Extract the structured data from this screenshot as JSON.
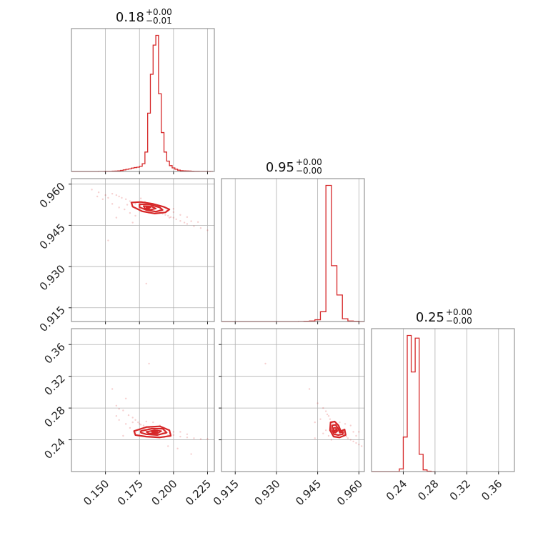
{
  "chart_data": {
    "type": "corner",
    "color": "#d62728",
    "grid": true,
    "params": [
      {
        "id": "p0",
        "range": [
          0.125,
          0.23
        ],
        "ticks": [
          "0.150",
          "0.175",
          "0.200",
          "0.225"
        ],
        "tick_values": [
          0.15,
          0.175,
          0.2,
          0.225
        ]
      },
      {
        "id": "p1",
        "range": [
          0.91,
          0.962
        ],
        "ticks": [
          "0.915",
          "0.930",
          "0.945",
          "0.960"
        ],
        "tick_values": [
          0.915,
          0.93,
          0.945,
          0.96
        ]
      },
      {
        "id": "p2",
        "range": [
          0.2,
          0.38
        ],
        "ticks": [
          "0.24",
          "0.28",
          "0.32",
          "0.36"
        ],
        "tick_values": [
          0.24,
          0.28,
          0.32,
          0.36
        ]
      }
    ],
    "titles": [
      {
        "value": "0.18",
        "plus": "+0.00",
        "minus": "−0.01"
      },
      {
        "value": "0.95",
        "plus": "+0.00",
        "minus": "−0.00"
      },
      {
        "value": "0.25",
        "plus": "+0.00",
        "minus": "−0.00"
      }
    ],
    "histograms": [
      {
        "param": 0,
        "bin_edges": [
          0.125,
          0.127,
          0.129,
          0.131,
          0.133,
          0.135,
          0.137,
          0.139,
          0.141,
          0.143,
          0.145,
          0.147,
          0.149,
          0.151,
          0.153,
          0.155,
          0.157,
          0.159,
          0.161,
          0.163,
          0.165,
          0.167,
          0.169,
          0.171,
          0.173,
          0.175,
          0.177,
          0.179,
          0.181,
          0.183,
          0.185,
          0.187,
          0.189,
          0.191,
          0.193,
          0.195,
          0.197,
          0.199,
          0.201,
          0.203,
          0.205,
          0.207,
          0.209,
          0.211,
          0.213,
          0.215,
          0.217,
          0.219,
          0.221,
          0.223,
          0.225,
          0.227,
          0.229
        ],
        "counts": [
          0,
          0,
          0,
          0,
          0,
          0,
          0,
          0,
          0,
          0,
          1,
          1,
          2,
          2,
          3,
          5,
          6,
          10,
          16,
          24,
          33,
          40,
          52,
          60,
          66,
          80,
          120,
          300,
          900,
          1500,
          1950,
          2100,
          1200,
          600,
          300,
          160,
          90,
          55,
          35,
          20,
          12,
          10,
          8,
          6,
          4,
          3,
          2,
          1,
          1,
          1,
          0,
          1
        ]
      },
      {
        "param": 1,
        "bin_edges": [
          0.91,
          0.912,
          0.914,
          0.916,
          0.918,
          0.92,
          0.922,
          0.924,
          0.926,
          0.928,
          0.93,
          0.932,
          0.934,
          0.936,
          0.938,
          0.94,
          0.942,
          0.944,
          0.946,
          0.948,
          0.95,
          0.952,
          0.954,
          0.956,
          0.958,
          0.96,
          0.962
        ],
        "counts": [
          0,
          0,
          0,
          0,
          0,
          0,
          0,
          0,
          0,
          0,
          0,
          0,
          0,
          0,
          1,
          3,
          8,
          25,
          140,
          1950,
          800,
          380,
          40,
          8,
          3,
          0
        ]
      },
      {
        "param": 2,
        "bin_edges": [
          0.2,
          0.205,
          0.21,
          0.215,
          0.22,
          0.225,
          0.23,
          0.235,
          0.24,
          0.245,
          0.25,
          0.255,
          0.26,
          0.265,
          0.27,
          0.275,
          0.28
        ],
        "counts": [
          0,
          0,
          0,
          0,
          0,
          0,
          0,
          40,
          520,
          2050,
          1500,
          2010,
          260,
          25,
          5,
          0
        ]
      }
    ],
    "scatter_panels": [
      {
        "x_param": 0,
        "y_param": 1,
        "points": [
          [
            0.14,
            0.958
          ],
          [
            0.145,
            0.957
          ],
          [
            0.15,
            0.956
          ],
          [
            0.152,
            0.955
          ],
          [
            0.155,
            0.9565
          ],
          [
            0.158,
            0.956
          ],
          [
            0.16,
            0.9555
          ],
          [
            0.162,
            0.955
          ],
          [
            0.165,
            0.9545
          ],
          [
            0.168,
            0.9538
          ],
          [
            0.17,
            0.9532
          ],
          [
            0.172,
            0.9528
          ],
          [
            0.174,
            0.9534
          ],
          [
            0.176,
            0.9522
          ],
          [
            0.178,
            0.952
          ],
          [
            0.18,
            0.9512
          ],
          [
            0.182,
            0.9508
          ],
          [
            0.184,
            0.9505
          ],
          [
            0.186,
            0.95
          ],
          [
            0.188,
            0.9498
          ],
          [
            0.19,
            0.9495
          ],
          [
            0.192,
            0.9492
          ],
          [
            0.194,
            0.9488
          ],
          [
            0.196,
            0.9485
          ],
          [
            0.198,
            0.948
          ],
          [
            0.2,
            0.9478
          ],
          [
            0.202,
            0.9472
          ],
          [
            0.205,
            0.9466
          ],
          [
            0.208,
            0.946
          ],
          [
            0.21,
            0.9455
          ],
          [
            0.215,
            0.9447
          ],
          [
            0.22,
            0.944
          ],
          [
            0.225,
            0.9432
          ],
          [
            0.168,
            0.9495
          ],
          [
            0.172,
            0.9485
          ],
          [
            0.164,
            0.9508
          ],
          [
            0.16,
            0.9515
          ],
          [
            0.166,
            0.9525
          ],
          [
            0.179,
            0.9536
          ],
          [
            0.185,
            0.9524
          ],
          [
            0.19,
            0.9508
          ],
          [
            0.2,
            0.9498
          ],
          [
            0.195,
            0.9503
          ],
          [
            0.175,
            0.951
          ],
          [
            0.182,
            0.9495
          ],
          [
            0.155,
            0.9528
          ],
          [
            0.188,
            0.9517
          ],
          [
            0.205,
            0.9488
          ],
          [
            0.21,
            0.948
          ],
          [
            0.2,
            0.951
          ],
          [
            0.18,
            0.9238
          ],
          [
            0.152,
            0.9395
          ],
          [
            0.17,
            0.946
          ],
          [
            0.148,
            0.9545
          ],
          [
            0.144,
            0.9555
          ],
          [
            0.158,
            0.9478
          ],
          [
            0.197,
            0.9478
          ],
          [
            0.213,
            0.9465
          ],
          [
            0.218,
            0.9462
          ],
          [
            0.176,
            0.9548
          ]
        ],
        "contours": [
          [
            [
              0.169,
              0.9533
            ],
            [
              0.176,
              0.9535
            ],
            [
              0.185,
              0.9528
            ],
            [
              0.193,
              0.9517
            ],
            [
              0.197,
              0.9508
            ],
            [
              0.194,
              0.9497
            ],
            [
              0.186,
              0.9493
            ],
            [
              0.177,
              0.9501
            ],
            [
              0.17,
              0.9518
            ]
          ],
          [
            [
              0.175,
              0.9527
            ],
            [
              0.183,
              0.9525
            ],
            [
              0.19,
              0.9515
            ],
            [
              0.192,
              0.9506
            ],
            [
              0.187,
              0.95
            ],
            [
              0.18,
              0.9506
            ],
            [
              0.175,
              0.9516
            ]
          ],
          [
            [
              0.178,
              0.952
            ],
            [
              0.184,
              0.9518
            ],
            [
              0.187,
              0.9511
            ],
            [
              0.183,
              0.9507
            ],
            [
              0.179,
              0.9512
            ]
          ],
          [
            [
              0.18,
              0.9517
            ],
            [
              0.183,
              0.9515
            ],
            [
              0.182,
              0.9512
            ],
            [
              0.18,
              0.9514
            ]
          ]
        ]
      },
      {
        "x_param": 0,
        "y_param": 2,
        "points": [
          [
            0.155,
            0.304
          ],
          [
            0.158,
            0.283
          ],
          [
            0.16,
            0.279
          ],
          [
            0.163,
            0.277
          ],
          [
            0.165,
            0.292
          ],
          [
            0.167,
            0.271
          ],
          [
            0.17,
            0.268
          ],
          [
            0.172,
            0.265
          ],
          [
            0.174,
            0.262
          ],
          [
            0.176,
            0.259
          ],
          [
            0.178,
            0.258
          ],
          [
            0.18,
            0.256
          ],
          [
            0.182,
            0.255
          ],
          [
            0.184,
            0.254
          ],
          [
            0.186,
            0.253
          ],
          [
            0.188,
            0.252
          ],
          [
            0.19,
            0.25
          ],
          [
            0.192,
            0.249
          ],
          [
            0.194,
            0.248
          ],
          [
            0.196,
            0.246
          ],
          [
            0.198,
            0.247
          ],
          [
            0.2,
            0.246
          ],
          [
            0.205,
            0.244
          ],
          [
            0.21,
            0.243
          ],
          [
            0.215,
            0.242
          ],
          [
            0.22,
            0.241
          ],
          [
            0.225,
            0.241
          ],
          [
            0.165,
            0.26
          ],
          [
            0.168,
            0.255
          ],
          [
            0.17,
            0.262
          ],
          [
            0.185,
            0.262
          ],
          [
            0.19,
            0.258
          ],
          [
            0.175,
            0.252
          ],
          [
            0.172,
            0.249
          ],
          [
            0.195,
            0.253
          ],
          [
            0.2,
            0.25
          ],
          [
            0.182,
            0.336
          ],
          [
            0.205,
            0.25
          ],
          [
            0.21,
            0.247
          ],
          [
            0.203,
            0.229
          ],
          [
            0.175,
            0.26
          ],
          [
            0.163,
            0.245
          ],
          [
            0.16,
            0.265
          ],
          [
            0.178,
            0.248
          ],
          [
            0.188,
            0.246
          ],
          [
            0.213,
            0.222
          ],
          [
            0.196,
            0.232
          ],
          [
            0.18,
            0.263
          ],
          [
            0.158,
            0.27
          ],
          [
            0.193,
            0.243
          ]
        ],
        "contours": [
          [
            [
              0.171,
              0.251
            ],
            [
              0.18,
              0.256
            ],
            [
              0.19,
              0.257
            ],
            [
              0.197,
              0.252
            ],
            [
              0.198,
              0.245
            ],
            [
              0.19,
              0.243
            ],
            [
              0.18,
              0.244
            ],
            [
              0.172,
              0.246
            ]
          ],
          [
            [
              0.176,
              0.251
            ],
            [
              0.184,
              0.254
            ],
            [
              0.192,
              0.254
            ],
            [
              0.195,
              0.249
            ],
            [
              0.188,
              0.246
            ],
            [
              0.18,
              0.247
            ],
            [
              0.176,
              0.249
            ]
          ],
          [
            [
              0.18,
              0.25
            ],
            [
              0.186,
              0.252
            ],
            [
              0.191,
              0.251
            ],
            [
              0.188,
              0.248
            ],
            [
              0.182,
              0.248
            ]
          ],
          [
            [
              0.184,
              0.25
            ],
            [
              0.188,
              0.251
            ],
            [
              0.188,
              0.249
            ],
            [
              0.185,
              0.249
            ]
          ]
        ]
      },
      {
        "x_param": 1,
        "y_param": 2,
        "points": [
          [
            0.926,
            0.336
          ],
          [
            0.942,
            0.304
          ],
          [
            0.945,
            0.286
          ],
          [
            0.947,
            0.28
          ],
          [
            0.948,
            0.276
          ],
          [
            0.9485,
            0.272
          ],
          [
            0.949,
            0.27
          ],
          [
            0.9495,
            0.266
          ],
          [
            0.95,
            0.262
          ],
          [
            0.9505,
            0.26
          ],
          [
            0.951,
            0.258
          ],
          [
            0.9515,
            0.256
          ],
          [
            0.952,
            0.254
          ],
          [
            0.9525,
            0.252
          ],
          [
            0.953,
            0.25
          ],
          [
            0.9535,
            0.249
          ],
          [
            0.954,
            0.248
          ],
          [
            0.9545,
            0.247
          ],
          [
            0.955,
            0.246
          ],
          [
            0.9555,
            0.244
          ],
          [
            0.956,
            0.242
          ],
          [
            0.957,
            0.24
          ],
          [
            0.958,
            0.238
          ],
          [
            0.959,
            0.236
          ],
          [
            0.96,
            0.234
          ],
          [
            0.961,
            0.232
          ],
          [
            0.946,
            0.266
          ],
          [
            0.944,
            0.262
          ],
          [
            0.948,
            0.252
          ],
          [
            0.947,
            0.248
          ],
          [
            0.949,
            0.245
          ],
          [
            0.951,
            0.245
          ],
          [
            0.953,
            0.262
          ],
          [
            0.955,
            0.26
          ],
          [
            0.957,
            0.258
          ],
          [
            0.958,
            0.25
          ],
          [
            0.959,
            0.245
          ],
          [
            0.96,
            0.25
          ],
          [
            0.944,
            0.242
          ],
          [
            0.95,
            0.24
          ]
        ],
        "contours": [
          [
            [
              0.9497,
              0.262
            ],
            [
              0.9512,
              0.263
            ],
            [
              0.9526,
              0.258
            ],
            [
              0.9534,
              0.251
            ],
            [
              0.9548,
              0.253
            ],
            [
              0.9552,
              0.246
            ],
            [
              0.953,
              0.243
            ],
            [
              0.9508,
              0.244
            ],
            [
              0.9495,
              0.252
            ]
          ],
          [
            [
              0.9503,
              0.258
            ],
            [
              0.9515,
              0.259
            ],
            [
              0.9523,
              0.255
            ],
            [
              0.9531,
              0.249
            ],
            [
              0.9543,
              0.25
            ],
            [
              0.9541,
              0.247
            ],
            [
              0.9525,
              0.246
            ],
            [
              0.951,
              0.247
            ],
            [
              0.9502,
              0.252
            ]
          ],
          [
            [
              0.9508,
              0.255
            ],
            [
              0.9516,
              0.255
            ],
            [
              0.9522,
              0.251
            ],
            [
              0.9515,
              0.249
            ],
            [
              0.9508,
              0.25
            ]
          ],
          [
            [
              0.9512,
              0.252
            ],
            [
              0.9517,
              0.253
            ],
            [
              0.9518,
              0.25
            ],
            [
              0.9513,
              0.25
            ]
          ]
        ]
      }
    ]
  }
}
